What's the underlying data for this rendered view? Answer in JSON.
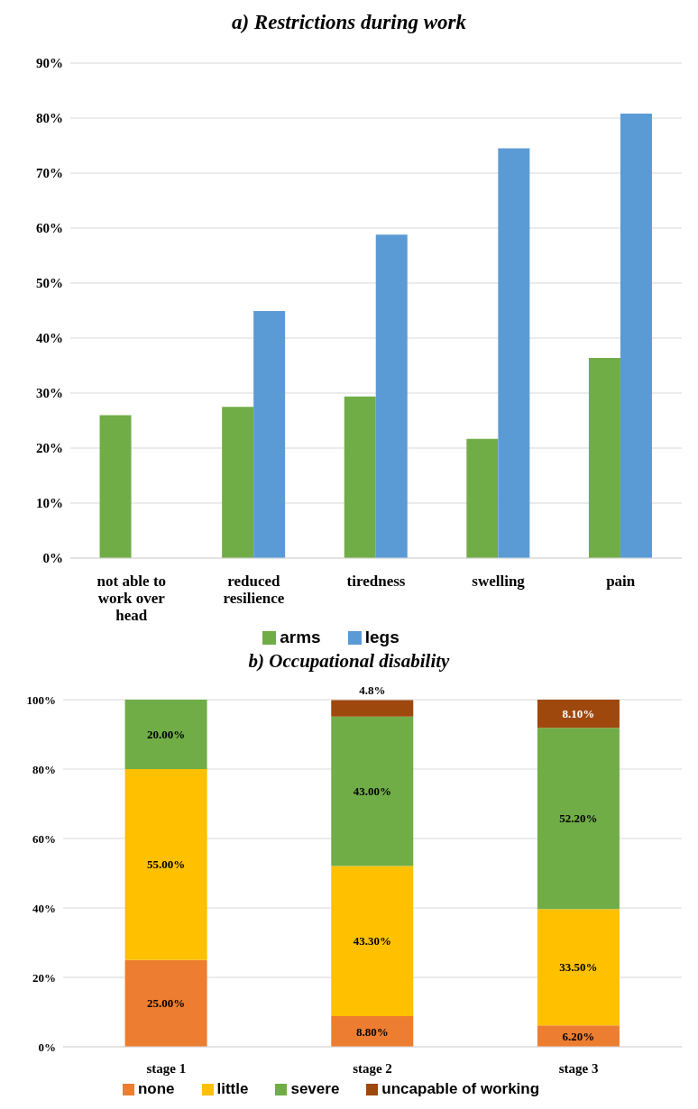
{
  "chart_data": [
    {
      "type": "bar",
      "title": "a) Restrictions during work",
      "categories": [
        "not able to work over head",
        "reduced resilience",
        "tiredness",
        "swelling",
        "pain"
      ],
      "series": [
        {
          "name": "arms",
          "color": "#70ad47",
          "values": [
            26,
            27.5,
            29.4,
            21.7,
            36.4
          ]
        },
        {
          "name": "legs",
          "color": "#5b9bd5",
          "values": [
            null,
            44.9,
            58.8,
            74.5,
            80.8
          ]
        }
      ],
      "ylim": [
        0,
        90
      ],
      "yticks": [
        {
          "value": 0,
          "label": "0%"
        },
        {
          "value": 10,
          "label": "10%"
        },
        {
          "value": 20,
          "label": "20%"
        },
        {
          "value": 30,
          "label": "30%"
        },
        {
          "value": 40,
          "label": "40%"
        },
        {
          "value": 50,
          "label": "50%"
        },
        {
          "value": 60,
          "label": "60%"
        },
        {
          "value": 70,
          "label": "70%"
        },
        {
          "value": 80,
          "label": "80%"
        },
        {
          "value": 90,
          "label": "90%"
        }
      ],
      "grid": "y",
      "legend": "bottom"
    },
    {
      "type": "bar",
      "title": "b) Occupational disability",
      "categories": [
        "stage 1",
        "stage 2",
        "stage 3"
      ],
      "stacked": true,
      "series": [
        {
          "name": "none",
          "color": "#ed7d31",
          "values": [
            25,
            8.8,
            6.2
          ],
          "value_labels": [
            "25.00%",
            "8.80%",
            "6.20%"
          ]
        },
        {
          "name": "little",
          "color": "#ffc000",
          "values": [
            55,
            43.3,
            33.5
          ],
          "value_labels": [
            "55.00%",
            "43.30%",
            "33.50%"
          ]
        },
        {
          "name": "severe",
          "color": "#70ad47",
          "values": [
            20,
            43,
            52.2
          ],
          "value_labels": [
            "20.00%",
            "43.00%",
            "52.20%"
          ]
        },
        {
          "name": "uncapable of working",
          "color": "#9e480e",
          "values": [
            null,
            4.8,
            8.1
          ],
          "value_labels": [
            null,
            "4.8%",
            "8.10%"
          ]
        }
      ],
      "ylim": [
        0,
        100
      ],
      "yticks": [
        {
          "value": 0,
          "label": "0%"
        },
        {
          "value": 20,
          "label": "20%"
        },
        {
          "value": 40,
          "label": "40%"
        },
        {
          "value": 60,
          "label": "60%"
        },
        {
          "value": 80,
          "label": "80%"
        },
        {
          "value": 100,
          "label": "100%"
        }
      ],
      "grid": "y",
      "legend": "bottom"
    }
  ]
}
